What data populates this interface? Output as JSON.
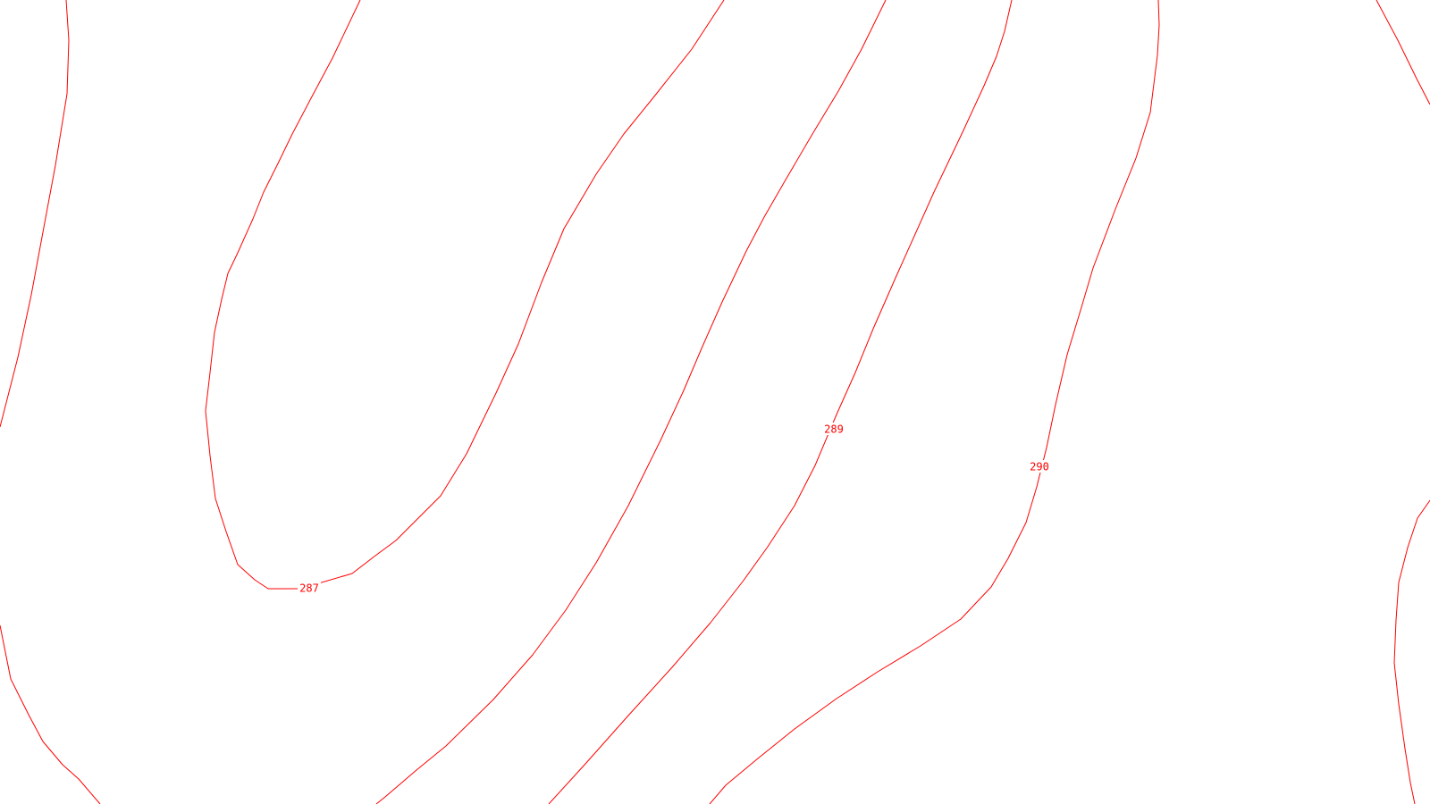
{
  "map": {
    "background_color": "#ffffff",
    "contour_color": "#ff0000",
    "labels": {
      "contour_287": "287",
      "contour_289": "289",
      "contour_290": "290"
    }
  }
}
